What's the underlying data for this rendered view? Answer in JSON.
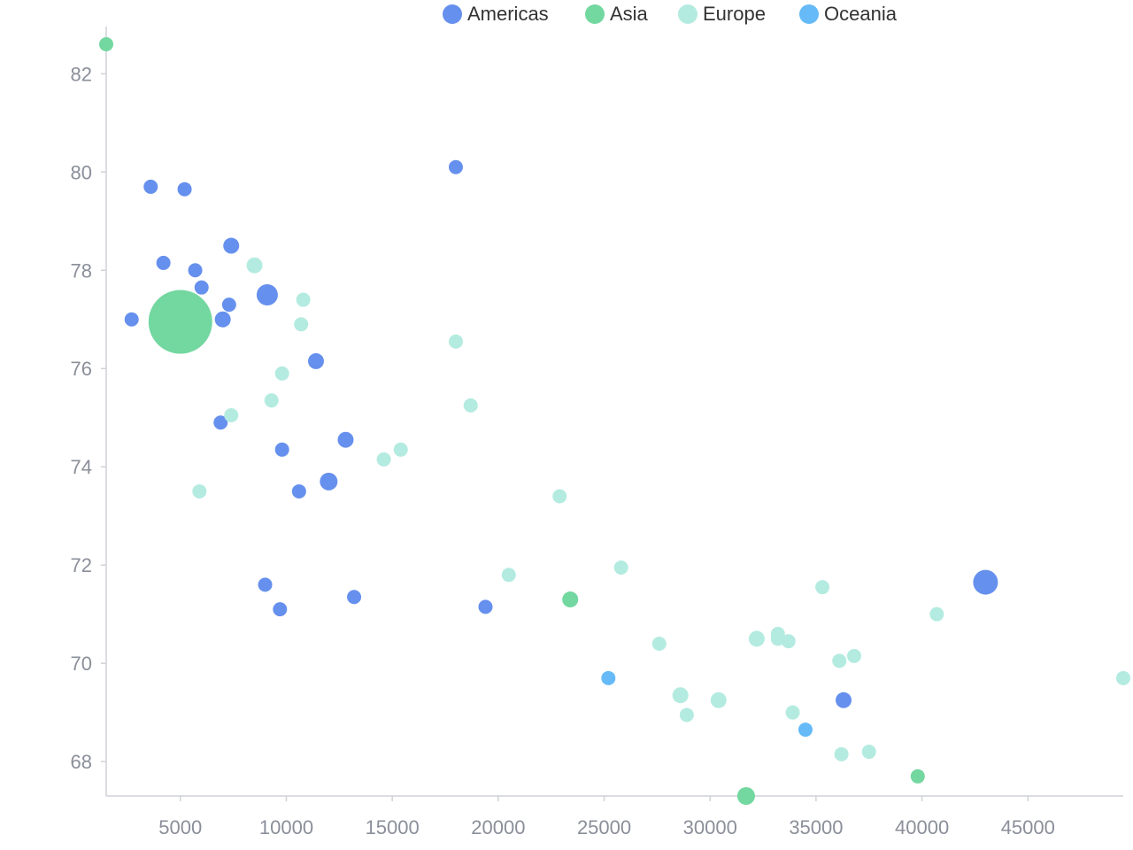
{
  "chart_data": {
    "type": "scatter",
    "title": "",
    "xlabel": "",
    "ylabel": "",
    "xlim": [
      1500,
      49500
    ],
    "ylim": [
      67.3,
      82.6
    ],
    "xticks": [
      5000,
      10000,
      15000,
      20000,
      25000,
      30000,
      35000,
      40000,
      45000
    ],
    "yticks": [
      68,
      70,
      72,
      74,
      76,
      78,
      80,
      82
    ],
    "grid": false,
    "legend_position": "top-center",
    "series": [
      {
        "name": "Americas",
        "color": "#6690ee",
        "points": [
          {
            "x": 2700,
            "y": 77.0,
            "r": 8
          },
          {
            "x": 3600,
            "y": 79.7,
            "r": 8
          },
          {
            "x": 4200,
            "y": 78.15,
            "r": 8
          },
          {
            "x": 5200,
            "y": 79.65,
            "r": 8
          },
          {
            "x": 5700,
            "y": 78.0,
            "r": 8
          },
          {
            "x": 6000,
            "y": 77.65,
            "r": 8
          },
          {
            "x": 6900,
            "y": 74.9,
            "r": 8
          },
          {
            "x": 7000,
            "y": 77.0,
            "r": 9
          },
          {
            "x": 7300,
            "y": 77.3,
            "r": 8
          },
          {
            "x": 7400,
            "y": 78.5,
            "r": 9
          },
          {
            "x": 9000,
            "y": 71.6,
            "r": 8
          },
          {
            "x": 9100,
            "y": 77.5,
            "r": 12
          },
          {
            "x": 9700,
            "y": 71.1,
            "r": 8
          },
          {
            "x": 9800,
            "y": 74.35,
            "r": 8
          },
          {
            "x": 10600,
            "y": 73.5,
            "r": 8
          },
          {
            "x": 11400,
            "y": 76.15,
            "r": 9
          },
          {
            "x": 12000,
            "y": 73.7,
            "r": 10
          },
          {
            "x": 12800,
            "y": 74.55,
            "r": 9
          },
          {
            "x": 13200,
            "y": 71.35,
            "r": 8
          },
          {
            "x": 18000,
            "y": 80.1,
            "r": 8
          },
          {
            "x": 19400,
            "y": 71.15,
            "r": 8
          },
          {
            "x": 36300,
            "y": 69.25,
            "r": 9
          },
          {
            "x": 43000,
            "y": 71.65,
            "r": 14
          }
        ]
      },
      {
        "name": "Asia",
        "color": "#73d7a0",
        "points": [
          {
            "x": 1500,
            "y": 82.6,
            "r": 8
          },
          {
            "x": 5000,
            "y": 76.95,
            "r": 36
          },
          {
            "x": 23400,
            "y": 71.3,
            "r": 9
          },
          {
            "x": 31700,
            "y": 67.3,
            "r": 10
          },
          {
            "x": 39800,
            "y": 67.7,
            "r": 8
          }
        ]
      },
      {
        "name": "Europe",
        "color": "#b4ebe0",
        "points": [
          {
            "x": 5900,
            "y": 73.5,
            "r": 8
          },
          {
            "x": 7400,
            "y": 75.05,
            "r": 8
          },
          {
            "x": 8500,
            "y": 78.1,
            "r": 9
          },
          {
            "x": 9300,
            "y": 75.35,
            "r": 8
          },
          {
            "x": 9800,
            "y": 75.9,
            "r": 8
          },
          {
            "x": 10700,
            "y": 76.9,
            "r": 8
          },
          {
            "x": 10800,
            "y": 77.4,
            "r": 8
          },
          {
            "x": 14600,
            "y": 74.15,
            "r": 8
          },
          {
            "x": 15400,
            "y": 74.35,
            "r": 8
          },
          {
            "x": 18000,
            "y": 76.55,
            "r": 8
          },
          {
            "x": 18700,
            "y": 75.25,
            "r": 8
          },
          {
            "x": 20500,
            "y": 71.8,
            "r": 8
          },
          {
            "x": 22900,
            "y": 73.4,
            "r": 8
          },
          {
            "x": 25800,
            "y": 71.95,
            "r": 8
          },
          {
            "x": 27600,
            "y": 70.4,
            "r": 8
          },
          {
            "x": 28600,
            "y": 69.35,
            "r": 9
          },
          {
            "x": 28900,
            "y": 68.95,
            "r": 8
          },
          {
            "x": 30400,
            "y": 69.25,
            "r": 9
          },
          {
            "x": 32200,
            "y": 70.5,
            "r": 9
          },
          {
            "x": 33200,
            "y": 70.5,
            "r": 8
          },
          {
            "x": 33200,
            "y": 70.6,
            "r": 8
          },
          {
            "x": 33700,
            "y": 70.45,
            "r": 8
          },
          {
            "x": 33900,
            "y": 69.0,
            "r": 8
          },
          {
            "x": 35300,
            "y": 71.55,
            "r": 8
          },
          {
            "x": 36100,
            "y": 70.05,
            "r": 8
          },
          {
            "x": 36200,
            "y": 68.15,
            "r": 8
          },
          {
            "x": 36800,
            "y": 70.15,
            "r": 8
          },
          {
            "x": 37500,
            "y": 68.2,
            "r": 8
          },
          {
            "x": 40700,
            "y": 71.0,
            "r": 8
          },
          {
            "x": 49500,
            "y": 69.7,
            "r": 8
          }
        ]
      },
      {
        "name": "Oceania",
        "color": "#66baf8",
        "points": [
          {
            "x": 25200,
            "y": 69.7,
            "r": 8
          },
          {
            "x": 34500,
            "y": 68.65,
            "r": 8
          }
        ]
      }
    ]
  }
}
